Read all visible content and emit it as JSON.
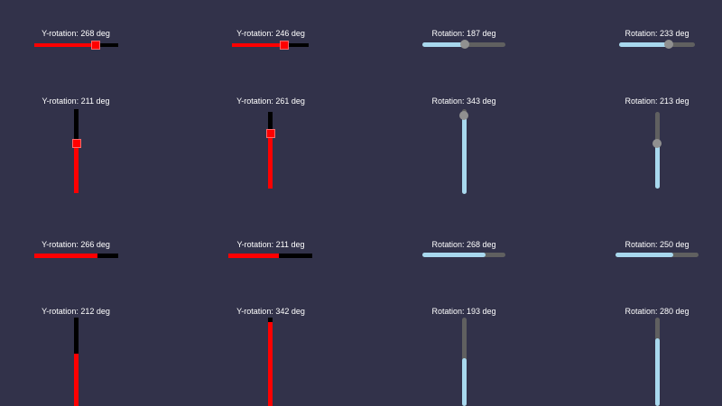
{
  "colors": {
    "background": "#32324a",
    "red_fill": "#ff0000",
    "red_track": "#000000",
    "blue_fill": "#a8d8ee",
    "blue_track": "#606060",
    "thumb": "#909090"
  },
  "sliders": [
    {
      "label": "Y-rotation: 268 deg",
      "value": 0.72
    },
    {
      "label": "Y-rotation: 246 deg",
      "value": 0.68
    },
    {
      "label": "Rotation: 187 deg",
      "value": 0.52
    },
    {
      "label": "Rotation: 233 deg",
      "value": 0.65
    },
    {
      "label": "Y-rotation: 211 deg",
      "value": 0.59
    },
    {
      "label": "Y-rotation: 261 deg",
      "value": 0.72
    },
    {
      "label": "Rotation: 343 deg",
      "value": 0.95
    },
    {
      "label": "Rotation: 213 deg",
      "value": 0.59
    },
    {
      "label": "Y-rotation: 266 deg",
      "value": 0.74
    },
    {
      "label": "Y-rotation: 211 deg",
      "value": 0.59
    },
    {
      "label": "Rotation: 268 deg",
      "value": 0.75
    },
    {
      "label": "Rotation: 250 deg",
      "value": 0.7
    },
    {
      "label": "Y-rotation: 212 deg",
      "value": 0.59
    },
    {
      "label": "Y-rotation: 342 deg",
      "value": 0.95
    },
    {
      "label": "Rotation: 193 deg",
      "value": 0.54
    },
    {
      "label": "Rotation: 280 deg",
      "value": 0.78
    }
  ]
}
